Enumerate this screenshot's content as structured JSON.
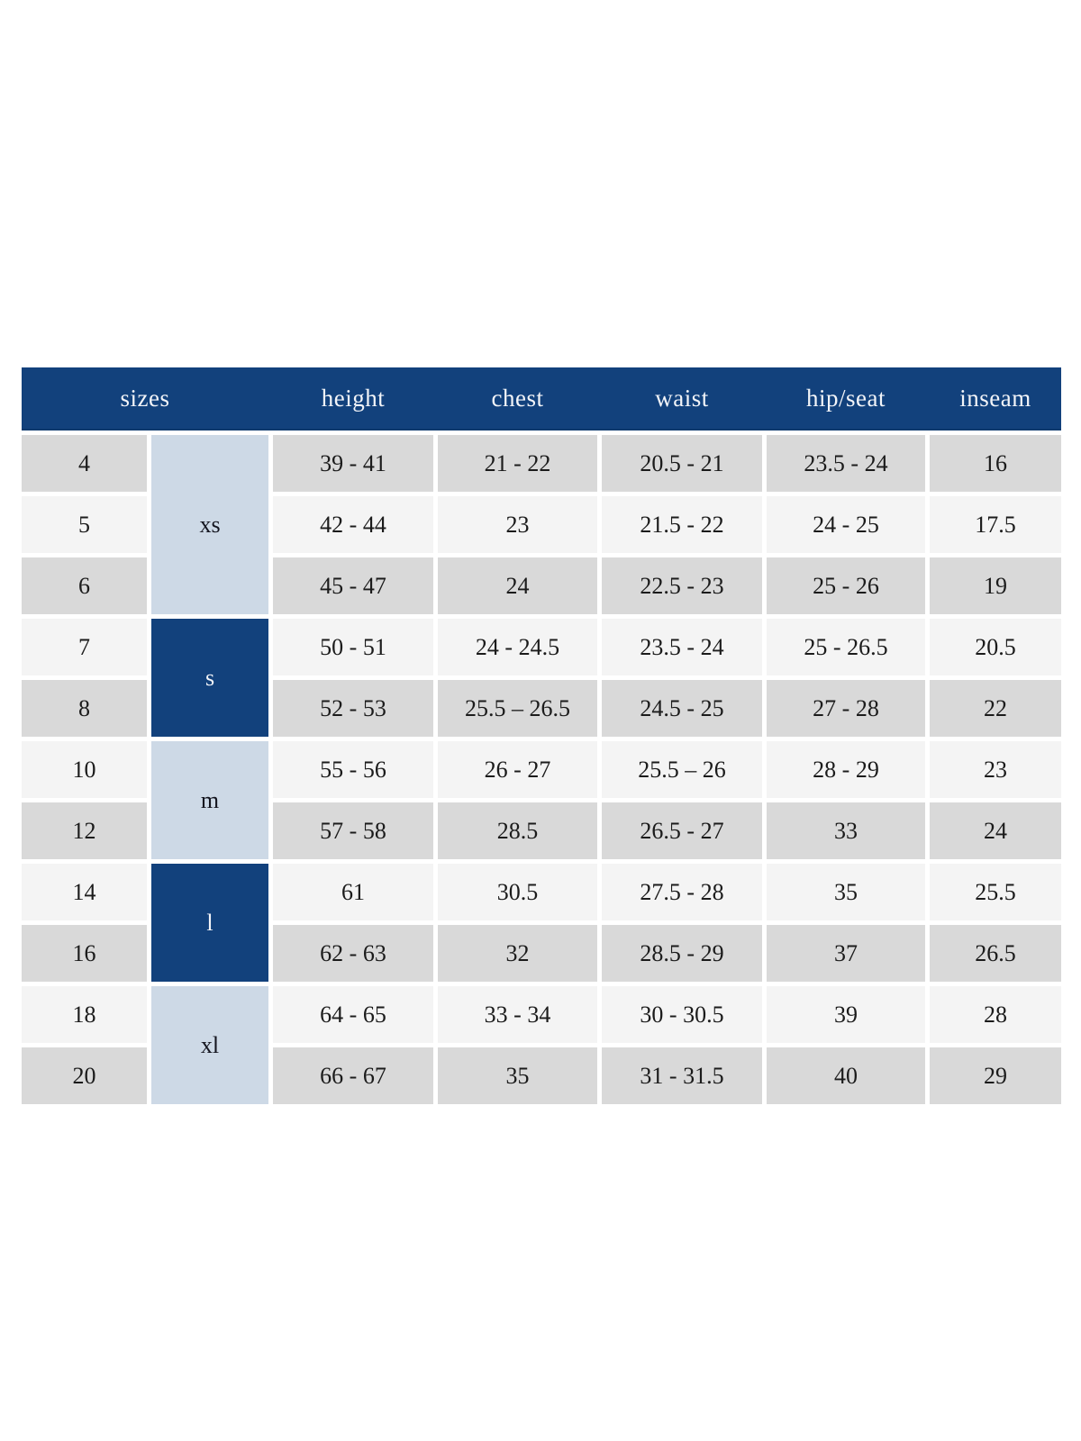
{
  "colors": {
    "header_bg": "#12417c",
    "header_text": "#f2f4f8",
    "group_light_bg": "#cdd9e6",
    "group_dark_bg": "#12417c",
    "row_gray": "#d9d9d9",
    "row_light": "#f4f4f4",
    "cell_text": "#1b1b1b",
    "page_bg": "#ffffff"
  },
  "chart_data": {
    "type": "table",
    "columns": {
      "sizes": "sizes",
      "height": "height",
      "chest": "chest",
      "waist": "waist",
      "hip_seat": "hip/seat",
      "inseam": "inseam"
    },
    "groups": [
      {
        "label": "xs",
        "span": 3,
        "variant": "light"
      },
      {
        "label": "s",
        "span": 2,
        "variant": "dark"
      },
      {
        "label": "m",
        "span": 2,
        "variant": "light"
      },
      {
        "label": "l",
        "span": 2,
        "variant": "dark"
      },
      {
        "label": "xl",
        "span": 2,
        "variant": "light"
      }
    ],
    "rows": [
      {
        "size": "4",
        "height": "39 - 41",
        "chest": "21 - 22",
        "waist": "20.5 - 21",
        "hip_seat": "23.5 - 24",
        "inseam": "16"
      },
      {
        "size": "5",
        "height": "42 - 44",
        "chest": "23",
        "waist": "21.5 - 22",
        "hip_seat": "24 - 25",
        "inseam": "17.5"
      },
      {
        "size": "6",
        "height": "45 - 47",
        "chest": "24",
        "waist": "22.5 - 23",
        "hip_seat": "25 - 26",
        "inseam": "19"
      },
      {
        "size": "7",
        "height": "50 - 51",
        "chest": "24 - 24.5",
        "waist": "23.5 - 24",
        "hip_seat": "25 - 26.5",
        "inseam": "20.5"
      },
      {
        "size": "8",
        "height": "52 - 53",
        "chest": "25.5 – 26.5",
        "waist": "24.5 - 25",
        "hip_seat": "27 - 28",
        "inseam": "22"
      },
      {
        "size": "10",
        "height": "55 - 56",
        "chest": "26 - 27",
        "waist": "25.5 – 26",
        "hip_seat": "28 - 29",
        "inseam": "23"
      },
      {
        "size": "12",
        "height": "57 - 58",
        "chest": "28.5",
        "waist": "26.5 - 27",
        "hip_seat": "33",
        "inseam": "24"
      },
      {
        "size": "14",
        "height": "61",
        "chest": "30.5",
        "waist": "27.5 - 28",
        "hip_seat": "35",
        "inseam": "25.5"
      },
      {
        "size": "16",
        "height": "62 - 63",
        "chest": "32",
        "waist": "28.5 - 29",
        "hip_seat": "37",
        "inseam": "26.5"
      },
      {
        "size": "18",
        "height": "64 - 65",
        "chest": "33 - 34",
        "waist": "30 - 30.5",
        "hip_seat": "39",
        "inseam": "28"
      },
      {
        "size": "20",
        "height": "66 - 67",
        "chest": "35",
        "waist": "31 - 31.5",
        "hip_seat": "40",
        "inseam": "29"
      }
    ]
  }
}
